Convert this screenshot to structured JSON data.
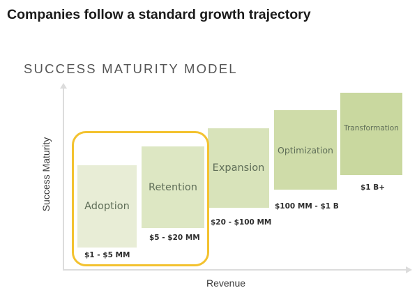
{
  "headline": "Companies follow a standard growth trajectory",
  "model_title": "SUCCESS MATURITY MODEL",
  "axes": {
    "y_label": "Success Maturity",
    "x_label": "Revenue"
  },
  "stages": [
    {
      "name": "Adoption",
      "revenue": "$1 - $5 MM",
      "fill": "#e8edd6"
    },
    {
      "name": "Retention",
      "revenue": "$5 - $20 MM",
      "fill": "#dde7c3"
    },
    {
      "name": "Expansion",
      "revenue": "$20 - $100 MM",
      "fill": "#d8e3ba"
    },
    {
      "name": "Optimization",
      "revenue": "$100 MM - $1 B",
      "fill": "#cfdca9"
    },
    {
      "name": "Transformation",
      "revenue": "$1 B+",
      "fill": "#c9d89f"
    }
  ],
  "highlight_color": "#f3c22f"
}
